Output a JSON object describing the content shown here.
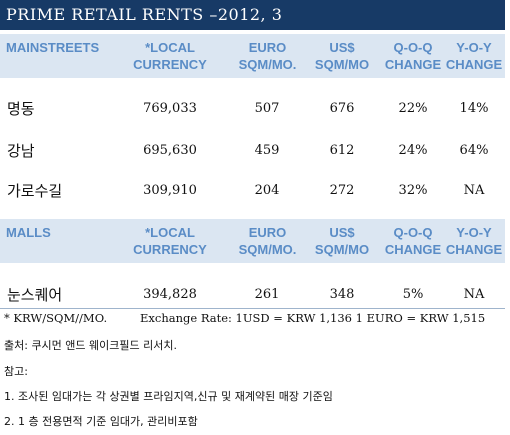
{
  "title": "PRIME RETAIL RENTS –2012, 3",
  "colors": {
    "title_bg": "#173a66",
    "header_bg": "#dbe6f2",
    "header_text": "#5a8cc6"
  },
  "header1": {
    "col0": "MAINSTREETS",
    "col1": [
      "*LOCAL",
      "CURRENCY"
    ],
    "col2": [
      "EURO",
      "SQM/MO."
    ],
    "col3": [
      "US$",
      "SQM/MO"
    ],
    "col4": [
      "Q-O-Q",
      "CHANGE"
    ],
    "col5": [
      "Y-O-Y",
      "CHANGE"
    ]
  },
  "mainstreets": [
    {
      "name": "명동",
      "local": "769,033",
      "euro": "507",
      "usd": "676",
      "qoq": "22%",
      "yoy": "14%"
    },
    {
      "name": "강남",
      "local": "695,630",
      "euro": "459",
      "usd": "612",
      "qoq": "24%",
      "yoy": "64%"
    },
    {
      "name": "가로수길",
      "local": "309,910",
      "euro": "204",
      "usd": "272",
      "qoq": "32%",
      "yoy": "NA"
    }
  ],
  "header2": {
    "col0": "MALLS",
    "col1": [
      "*LOCAL",
      "CURRENCY"
    ],
    "col2": [
      "EURO",
      "SQM/MO."
    ],
    "col3": [
      "US$",
      "SQM/MO"
    ],
    "col4": [
      "Q-O-Q",
      "CHANGE"
    ],
    "col5": [
      "Y-O-Y",
      "CHANGE"
    ]
  },
  "malls": [
    {
      "name": "눈스퀘어",
      "local": "394,828",
      "euro": "261",
      "usd": "348",
      "qoq": "5%",
      "yoy": "NA"
    }
  ],
  "footnote_unit": "* KRW/SQM//MO.",
  "footnote_exchange": "Exchange Rate: 1USD = KRW 1,136 1 EURO = KRW 1,515",
  "source": "출처: 쿠시먼 앤드 웨이크필드 리서치.",
  "notes_label": "참고:",
  "note1": "1. 조사된 임대가는 각 상권별 프라임지역,신규 및 재계약된 매장 기준임",
  "note2": "2. 1 층 전용면적 기준 임대가, 관리비포함"
}
